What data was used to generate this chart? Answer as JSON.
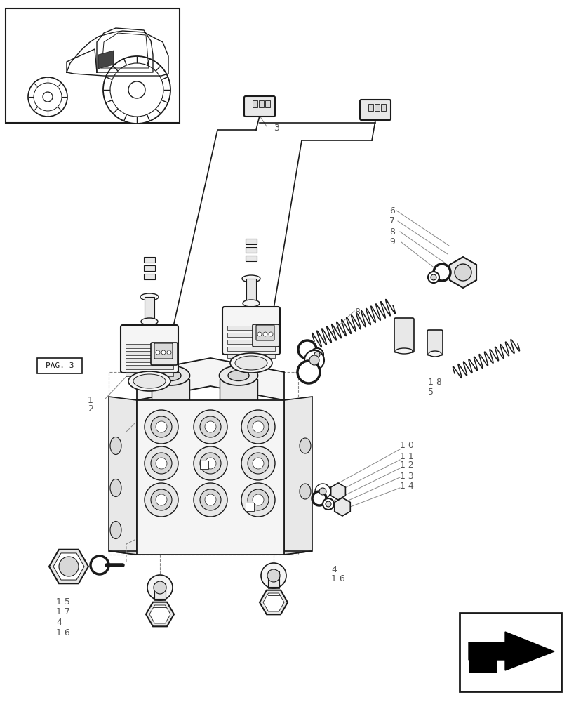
{
  "bg_color": "#ffffff",
  "lc": "#1a1a1a",
  "gc": "#888888",
  "dc": "#aaaaaa",
  "fc": "#f5f5f5",
  "fc2": "#e8e8e8",
  "fc3": "#d8d8d8"
}
